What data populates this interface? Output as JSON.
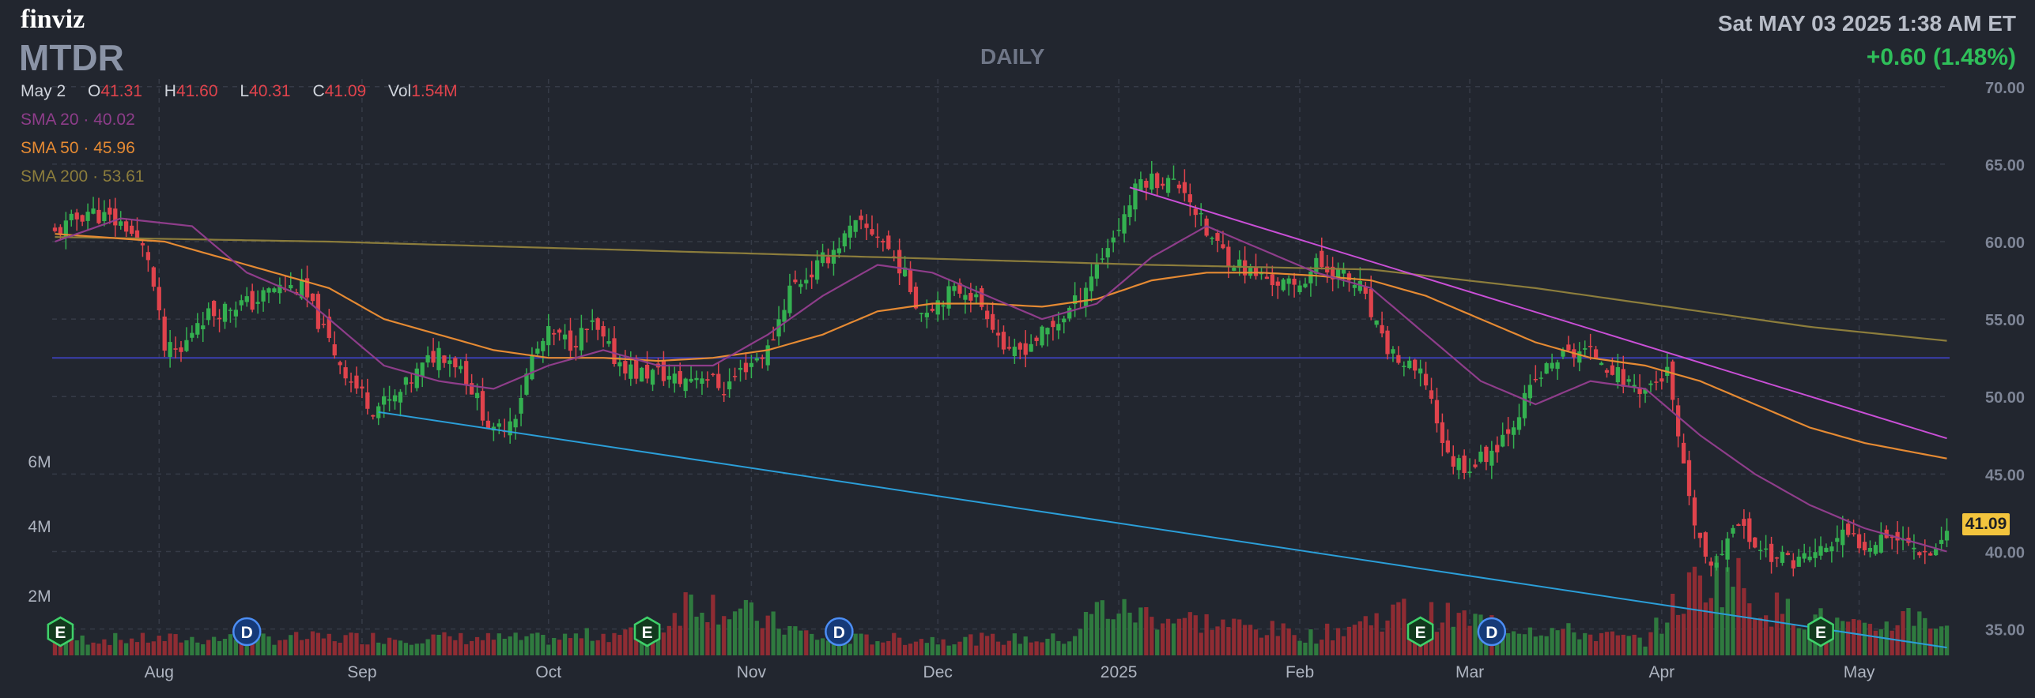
{
  "header": {
    "logo": "finviz",
    "ticker": "MTDR",
    "timeframe": "DAILY",
    "datetime": "Sat MAY 03 2025 1:38 AM ET",
    "change": "+0.60 (1.48%)"
  },
  "ohlc": {
    "date": "May 2",
    "o_label": "O",
    "o": "41.31",
    "h_label": "H",
    "h": "41.60",
    "l_label": "L",
    "l": "40.31",
    "c_label": "C",
    "c": "41.09",
    "vol_label": "Vol",
    "vol": "1.54M"
  },
  "indicators": [
    {
      "label": "SMA 20",
      "value": "40.02",
      "color": "#8e3d8a"
    },
    {
      "label": "SMA 50",
      "value": "45.96",
      "color": "#e58a33"
    },
    {
      "label": "SMA 200",
      "value": "53.61",
      "color": "#8c7d3c"
    }
  ],
  "last_price_tag": "41.09",
  "colors": {
    "up": "#34b050",
    "down": "#e0434c",
    "bg": "#22262f",
    "grid": "#363b47",
    "trend_blue": "#2b9ed8",
    "trend_magenta": "#c94fd6",
    "hline": "#3b3fb0"
  },
  "chart_data": {
    "type": "candlestick",
    "ylim": [
      33.5,
      70.5
    ],
    "y_ticks": [
      "35.00",
      "40.00",
      "45.00",
      "50.00",
      "55.00",
      "60.00",
      "65.00",
      "70.00"
    ],
    "x_ticks": [
      "Aug",
      "Sep",
      "Oct",
      "Nov",
      "Dec",
      "2025",
      "Feb",
      "Mar",
      "Apr",
      "May"
    ],
    "volume_ticks": [
      "2M",
      "4M",
      "6M"
    ],
    "series_anchors": {
      "close": [
        [
          0,
          60.5
        ],
        [
          6,
          62
        ],
        [
          13,
          61
        ],
        [
          17,
          59
        ],
        [
          20,
          53
        ],
        [
          23,
          52.8
        ],
        [
          26,
          55
        ],
        [
          33,
          56
        ],
        [
          36,
          56
        ],
        [
          40,
          57
        ],
        [
          45,
          57
        ],
        [
          50,
          53.5
        ],
        [
          54,
          51
        ],
        [
          58,
          49.3
        ],
        [
          62,
          49.8
        ],
        [
          66,
          51.5
        ],
        [
          70,
          53
        ],
        [
          74,
          52
        ],
        [
          80,
          47.5
        ],
        [
          84,
          49
        ],
        [
          87,
          52.5
        ],
        [
          90,
          54
        ],
        [
          94,
          53.5
        ],
        [
          98,
          54.5
        ],
        [
          102,
          52.5
        ],
        [
          106,
          51.5
        ],
        [
          110,
          51.5
        ],
        [
          114,
          51
        ],
        [
          118,
          51.5
        ],
        [
          122,
          50.5
        ],
        [
          126,
          52
        ],
        [
          130,
          53
        ],
        [
          134,
          57
        ],
        [
          138,
          58
        ],
        [
          142,
          59.5
        ],
        [
          146,
          61
        ],
        [
          150,
          60.5
        ],
        [
          154,
          58.5
        ],
        [
          158,
          55.5
        ],
        [
          162,
          56.5
        ],
        [
          166,
          57
        ],
        [
          170,
          55.5
        ],
        [
          174,
          52.5
        ],
        [
          178,
          53.5
        ],
        [
          182,
          54.5
        ],
        [
          186,
          56
        ],
        [
          190,
          58.5
        ],
        [
          194,
          61
        ],
        [
          198,
          64
        ],
        [
          202,
          64
        ],
        [
          206,
          63.5
        ],
        [
          210,
          60.5
        ],
        [
          214,
          59
        ],
        [
          218,
          58
        ],
        [
          222,
          57.5
        ],
        [
          226,
          57
        ],
        [
          230,
          58.5
        ],
        [
          234,
          58
        ],
        [
          238,
          57
        ],
        [
          242,
          53.5
        ],
        [
          246,
          52
        ],
        [
          250,
          51
        ],
        [
          254,
          46
        ],
        [
          258,
          45.5
        ],
        [
          262,
          46.5
        ],
        [
          266,
          48.5
        ],
        [
          270,
          51
        ],
        [
          274,
          52.5
        ],
        [
          278,
          53
        ],
        [
          282,
          52.5
        ],
        [
          286,
          51
        ],
        [
          290,
          50.5
        ],
        [
          294,
          51.5
        ],
        [
          298,
          43
        ],
        [
          302,
          38.5
        ],
        [
          306,
          42
        ],
        [
          310,
          40.5
        ],
        [
          314,
          39.5
        ],
        [
          318,
          39.5
        ],
        [
          322,
          40
        ],
        [
          326,
          41
        ],
        [
          330,
          40.5
        ],
        [
          334,
          41.3
        ],
        [
          338,
          40.5
        ],
        [
          342,
          40
        ],
        [
          345,
          41.1
        ]
      ],
      "sma20": [
        [
          0,
          60
        ],
        [
          12,
          61.5
        ],
        [
          25,
          61
        ],
        [
          35,
          58
        ],
        [
          45,
          56.5
        ],
        [
          55,
          53.5
        ],
        [
          60,
          52
        ],
        [
          70,
          51
        ],
        [
          80,
          50.5
        ],
        [
          90,
          52
        ],
        [
          100,
          53
        ],
        [
          110,
          52
        ],
        [
          120,
          52
        ],
        [
          130,
          54
        ],
        [
          140,
          56.5
        ],
        [
          150,
          58.5
        ],
        [
          160,
          58
        ],
        [
          170,
          56.5
        ],
        [
          180,
          55
        ],
        [
          190,
          56
        ],
        [
          200,
          59
        ],
        [
          210,
          61
        ],
        [
          220,
          59.5
        ],
        [
          230,
          58
        ],
        [
          240,
          57
        ],
        [
          250,
          54
        ],
        [
          260,
          51
        ],
        [
          270,
          49.5
        ],
        [
          280,
          51
        ],
        [
          290,
          50.5
        ],
        [
          300,
          47.5
        ],
        [
          310,
          45
        ],
        [
          320,
          43
        ],
        [
          330,
          41.5
        ],
        [
          345,
          40
        ]
      ],
      "sma50": [
        [
          0,
          60.5
        ],
        [
          20,
          60
        ],
        [
          35,
          58.5
        ],
        [
          50,
          57
        ],
        [
          60,
          55
        ],
        [
          70,
          54
        ],
        [
          80,
          53
        ],
        [
          90,
          52.5
        ],
        [
          100,
          52.5
        ],
        [
          110,
          52.3
        ],
        [
          120,
          52.5
        ],
        [
          130,
          53
        ],
        [
          140,
          54
        ],
        [
          150,
          55.5
        ],
        [
          160,
          56
        ],
        [
          170,
          56
        ],
        [
          180,
          55.8
        ],
        [
          190,
          56.3
        ],
        [
          200,
          57.5
        ],
        [
          210,
          58
        ],
        [
          220,
          58
        ],
        [
          230,
          57.8
        ],
        [
          240,
          57.5
        ],
        [
          250,
          56.5
        ],
        [
          260,
          55
        ],
        [
          270,
          53.5
        ],
        [
          280,
          52.5
        ],
        [
          290,
          52
        ],
        [
          300,
          51
        ],
        [
          310,
          49.5
        ],
        [
          320,
          48
        ],
        [
          330,
          47
        ],
        [
          345,
          46
        ]
      ],
      "sma200": [
        [
          0,
          60.3
        ],
        [
          50,
          60
        ],
        [
          100,
          59.5
        ],
        [
          150,
          59
        ],
        [
          200,
          58.5
        ],
        [
          240,
          58.2
        ],
        [
          270,
          57
        ],
        [
          300,
          55.5
        ],
        [
          320,
          54.5
        ],
        [
          345,
          53.6
        ]
      ],
      "volume": [
        [
          0,
          1.0
        ],
        [
          20,
          1.0
        ],
        [
          60,
          1.1
        ],
        [
          90,
          1.0
        ],
        [
          110,
          1.6
        ],
        [
          116,
          3.6
        ],
        [
          140,
          1.0
        ],
        [
          185,
          1.0
        ],
        [
          190,
          2.9
        ],
        [
          230,
          1.2
        ],
        [
          245,
          2.7
        ],
        [
          290,
          0.9
        ],
        [
          300,
          4.8
        ],
        [
          306,
          5.0
        ],
        [
          310,
          3.2
        ],
        [
          330,
          1.5
        ],
        [
          340,
          2.7
        ],
        [
          345,
          1.5
        ]
      ]
    },
    "trendlines": [
      {
        "from": [
          "Sep",
          49
        ],
        "to": [
          "May",
          33.8
        ],
        "color": "#2b9ed8"
      },
      {
        "from": [
          "Jan 2025",
          63.5
        ],
        "to": [
          "May",
          47.3
        ],
        "color": "#c94fd6"
      }
    ],
    "horizontal_line": 52.5,
    "events": [
      {
        "type": "E",
        "x": "Jul 24"
      },
      {
        "type": "D",
        "x": "Aug 20"
      },
      {
        "type": "E",
        "x": "Oct 22"
      },
      {
        "type": "D",
        "x": "Nov 20"
      },
      {
        "type": "E",
        "x": "Feb 18"
      },
      {
        "type": "D",
        "x": "Feb 28"
      },
      {
        "type": "E",
        "x": "Apr 22"
      }
    ]
  }
}
